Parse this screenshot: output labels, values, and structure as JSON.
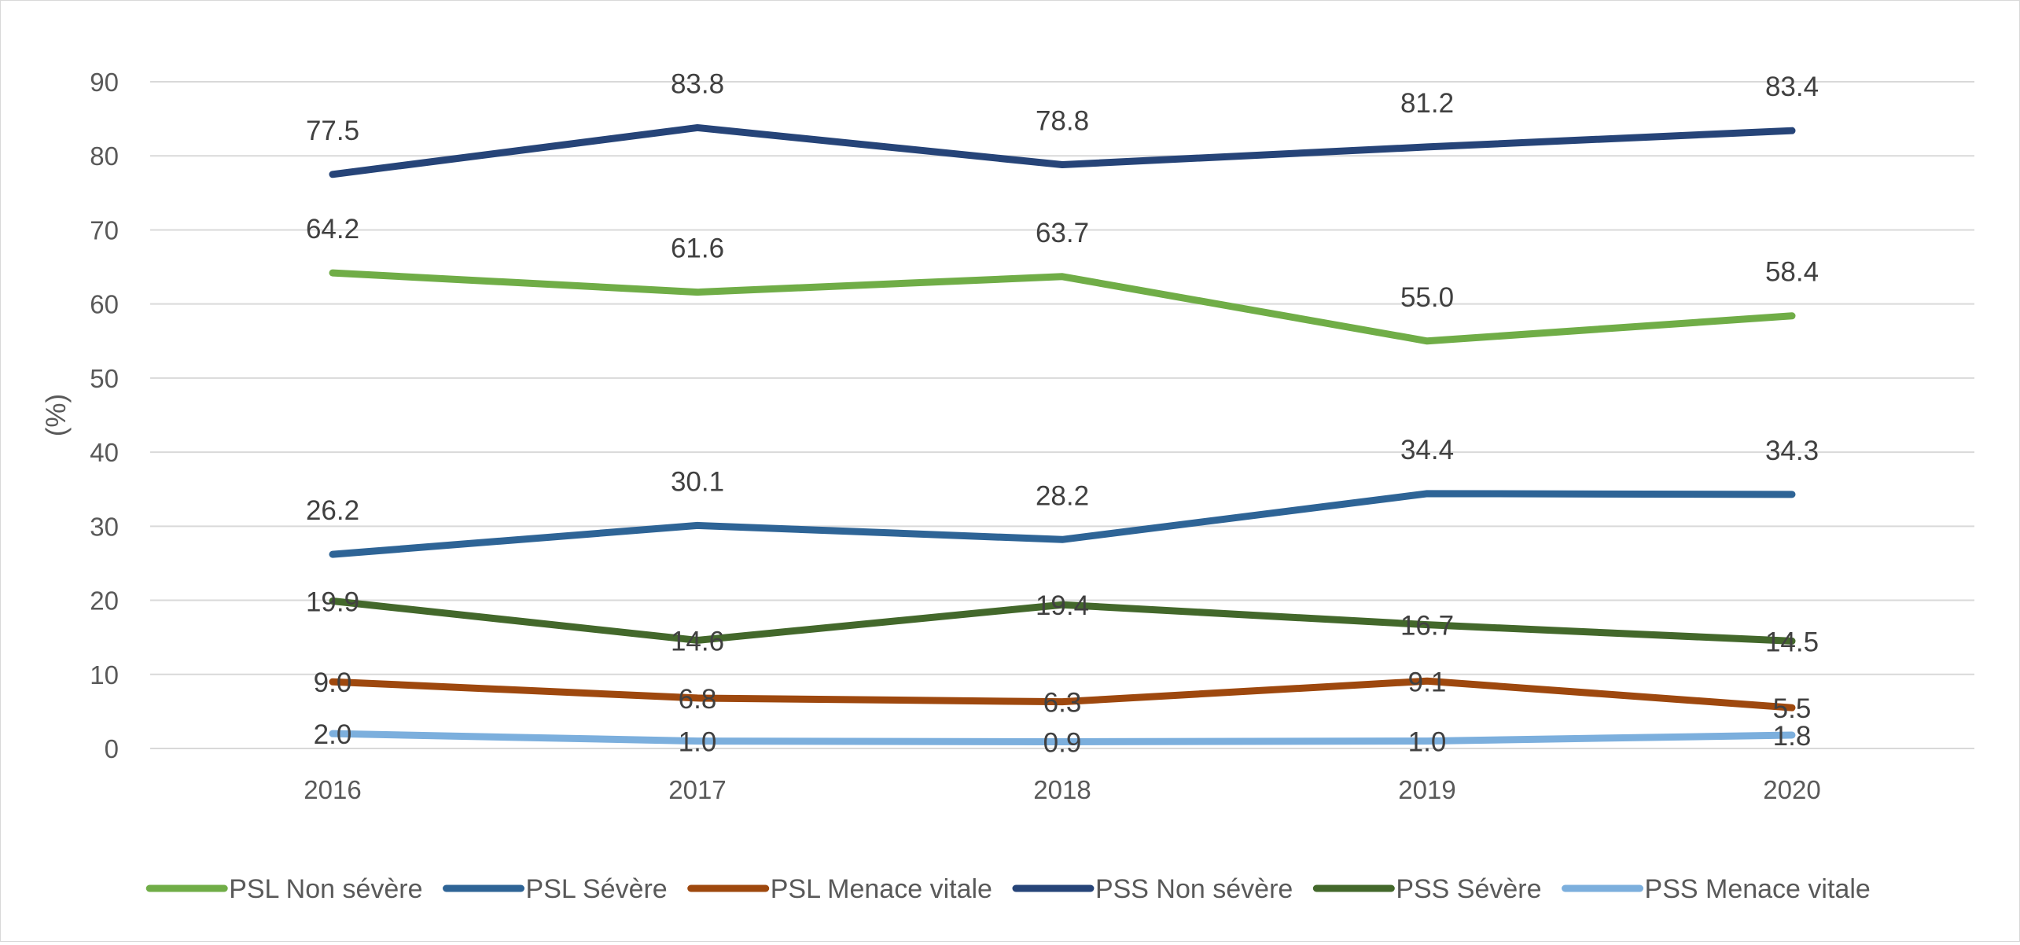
{
  "chart_data": {
    "type": "line",
    "title": "",
    "xlabel": "",
    "ylabel": "(%)",
    "ylim": [
      0,
      90
    ],
    "ytick_step": 10,
    "grid": true,
    "legend_position": "bottom",
    "categories": [
      "2016",
      "2017",
      "2018",
      "2019",
      "2020"
    ],
    "series": [
      {
        "name": "PSL Non sévère",
        "color": "#70ad47",
        "values": [
          64.2,
          61.6,
          63.7,
          55.0,
          58.4
        ]
      },
      {
        "name": "PSL Sévère",
        "color": "#2e6496",
        "values": [
          26.2,
          30.1,
          28.2,
          34.4,
          34.3
        ]
      },
      {
        "name": "PSL Menace vitale",
        "color": "#9e480e",
        "values": [
          9.0,
          6.8,
          6.3,
          9.1,
          5.5
        ]
      },
      {
        "name": "PSS Non sévère",
        "color": "#264478",
        "values": [
          77.5,
          83.8,
          78.8,
          81.2,
          83.4
        ]
      },
      {
        "name": "PSS Sévère",
        "color": "#43682b",
        "values": [
          19.9,
          14.6,
          19.4,
          16.7,
          14.5
        ]
      },
      {
        "name": "PSS Menace vitale",
        "color": "#7cafdd",
        "values": [
          2.0,
          1.0,
          0.9,
          1.0,
          1.8
        ]
      }
    ]
  }
}
